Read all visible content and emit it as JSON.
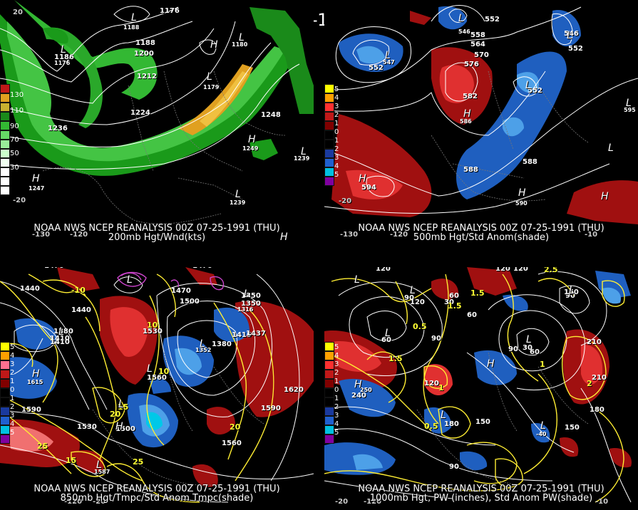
{
  "title": "00Z 07-25-1991 (THU)",
  "panels": [
    {
      "caption1": "NOAA NWS NCEP REANALYSIS 00Z 07-25-1991 (THU)",
      "caption2": "200mb Hgt/Wnd(kts)",
      "colorbar": [
        "130",
        "110",
        "90",
        "70",
        "50",
        "30"
      ],
      "contour_labels": [
        "1176",
        "1188",
        "1200",
        "1212",
        "1224",
        "1236",
        "1248",
        "1186",
        "1176",
        "1188",
        "1180",
        "1179",
        "1249",
        "1239",
        "1247",
        "1239"
      ],
      "lon_labels": [
        "-130",
        "-120",
        "-20",
        "20"
      ],
      "centers": [
        "L",
        "L",
        "L",
        "H",
        "H",
        "L",
        "H",
        "L",
        "L",
        "H"
      ]
    },
    {
      "caption1": "NOAA NWS NCEP REANALYSIS 00Z 07-25-1991 (THU)",
      "caption2": "500mb Hgt/Std Anom(shade)",
      "colorbar": [
        "5",
        "4",
        "3",
        "2",
        "1",
        "0",
        "1",
        "2",
        "3",
        "4",
        "5"
      ],
      "contour_labels": [
        "552",
        "547",
        "564",
        "558",
        "570",
        "576",
        "582",
        "586",
        "552",
        "546",
        "552",
        "588",
        "594",
        "588",
        "590",
        "595",
        "552",
        "546"
      ],
      "lon_labels": [
        "-130",
        "-120",
        "-20",
        "-10"
      ],
      "centers": [
        "L",
        "L",
        "H",
        "L",
        "L",
        "L",
        "H",
        "H",
        "H",
        "L"
      ]
    },
    {
      "caption1": "NOAA NWS NCEP REANALYSIS 00Z 07-25-1991 (THU)",
      "caption2": "850mb Hgt/Tmpc/Std Anom Tmpc(shade)",
      "colorbar": [
        "5",
        "4",
        "3",
        "2",
        "1",
        "0",
        "1",
        "2",
        "3",
        "4",
        "5"
      ],
      "contour_labels": [
        "1470",
        "1440",
        "1410",
        "1380",
        "1350",
        "1470",
        "1500",
        "1530",
        "1560",
        "1590",
        "1620",
        "1590",
        "1560",
        "1530",
        "1500",
        "1470",
        "1440",
        "1410",
        "1316",
        "1415",
        "1352",
        "1380",
        "1350",
        "1437",
        "1615",
        "1587"
      ],
      "temp_labels": [
        "-10",
        "10",
        "15",
        "20",
        "25",
        "25",
        "20",
        "15",
        "10"
      ],
      "lon_labels": [
        "-120",
        "-20"
      ],
      "centers": [
        "L",
        "L",
        "L",
        "L",
        "L",
        "L",
        "H",
        "H",
        "L"
      ]
    },
    {
      "caption1": "NOAA NWS NCEP REANALYSIS 00Z 07-25-1991 (THU)",
      "caption2": "1000mb Hgt, PW (inches), Std Anom PW(shade)",
      "colorbar": [
        "5",
        "4",
        "3",
        "2",
        "1",
        "0",
        "1",
        "2",
        "3",
        "4",
        "5"
      ],
      "contour_labels": [
        "120",
        "90",
        "60",
        "30",
        "60",
        "90",
        "120",
        "150",
        "180",
        "210",
        "240",
        "150",
        "90",
        "30",
        "60",
        "180",
        "210",
        "150",
        "90",
        "120",
        "120",
        "60",
        "90",
        "-40",
        "120",
        "250"
      ],
      "pw_labels": [
        "1.5",
        "0.5",
        "1",
        "0.5",
        "1.5",
        "2",
        "1",
        "2.5",
        "1.5"
      ],
      "lon_labels": [
        "-120",
        "-20",
        "-10"
      ],
      "centers": [
        "L",
        "L",
        "L",
        "L",
        "L",
        "L",
        "H",
        "H",
        "L"
      ]
    }
  ]
}
